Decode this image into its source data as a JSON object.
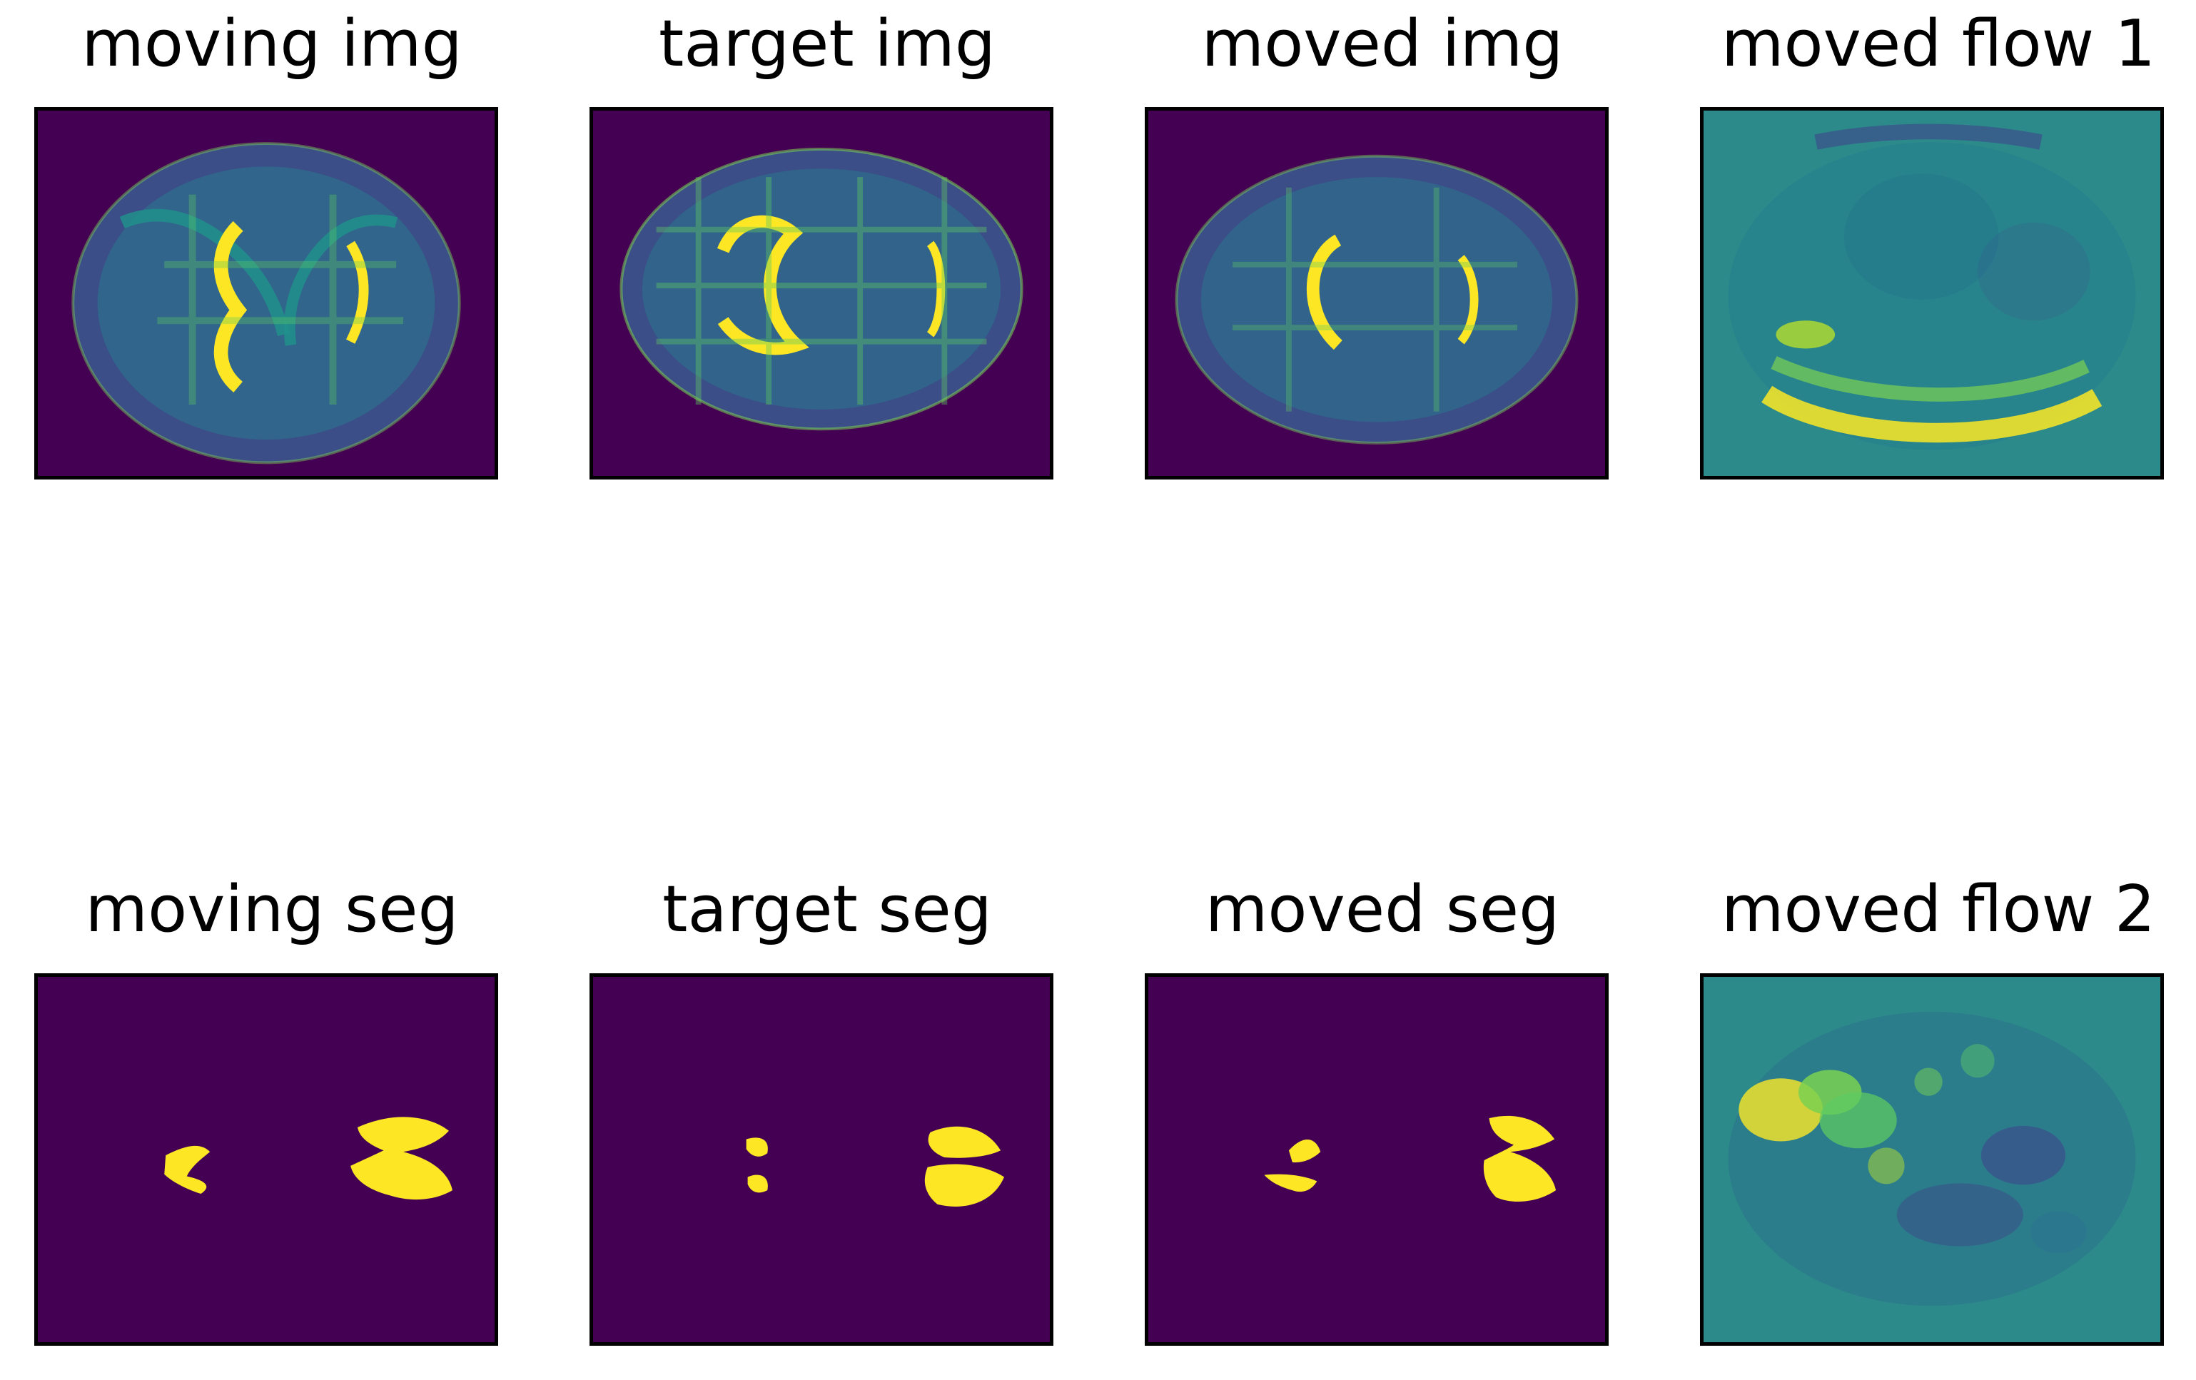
{
  "figure": {
    "panels": [
      {
        "title": "moving img",
        "kind": "brain-intensity-image",
        "colormap": "viridis"
      },
      {
        "title": "target img",
        "kind": "brain-intensity-image",
        "colormap": "viridis"
      },
      {
        "title": "moved img",
        "kind": "brain-intensity-image",
        "colormap": "viridis"
      },
      {
        "title": "moved flow 1",
        "kind": "flow-field-image",
        "colormap": "viridis"
      },
      {
        "title": "moving seg",
        "kind": "segmentation-mask",
        "colormap": "viridis"
      },
      {
        "title": "target seg",
        "kind": "segmentation-mask",
        "colormap": "viridis"
      },
      {
        "title": "moved seg",
        "kind": "segmentation-mask",
        "colormap": "viridis"
      },
      {
        "title": "moved flow 2",
        "kind": "flow-field-image",
        "colormap": "viridis"
      }
    ]
  },
  "colors": {
    "background_dark": "#440154",
    "blue_purple": "#3b528b",
    "teal": "#21918c",
    "green": "#5ec962",
    "yellow": "#fde725"
  }
}
